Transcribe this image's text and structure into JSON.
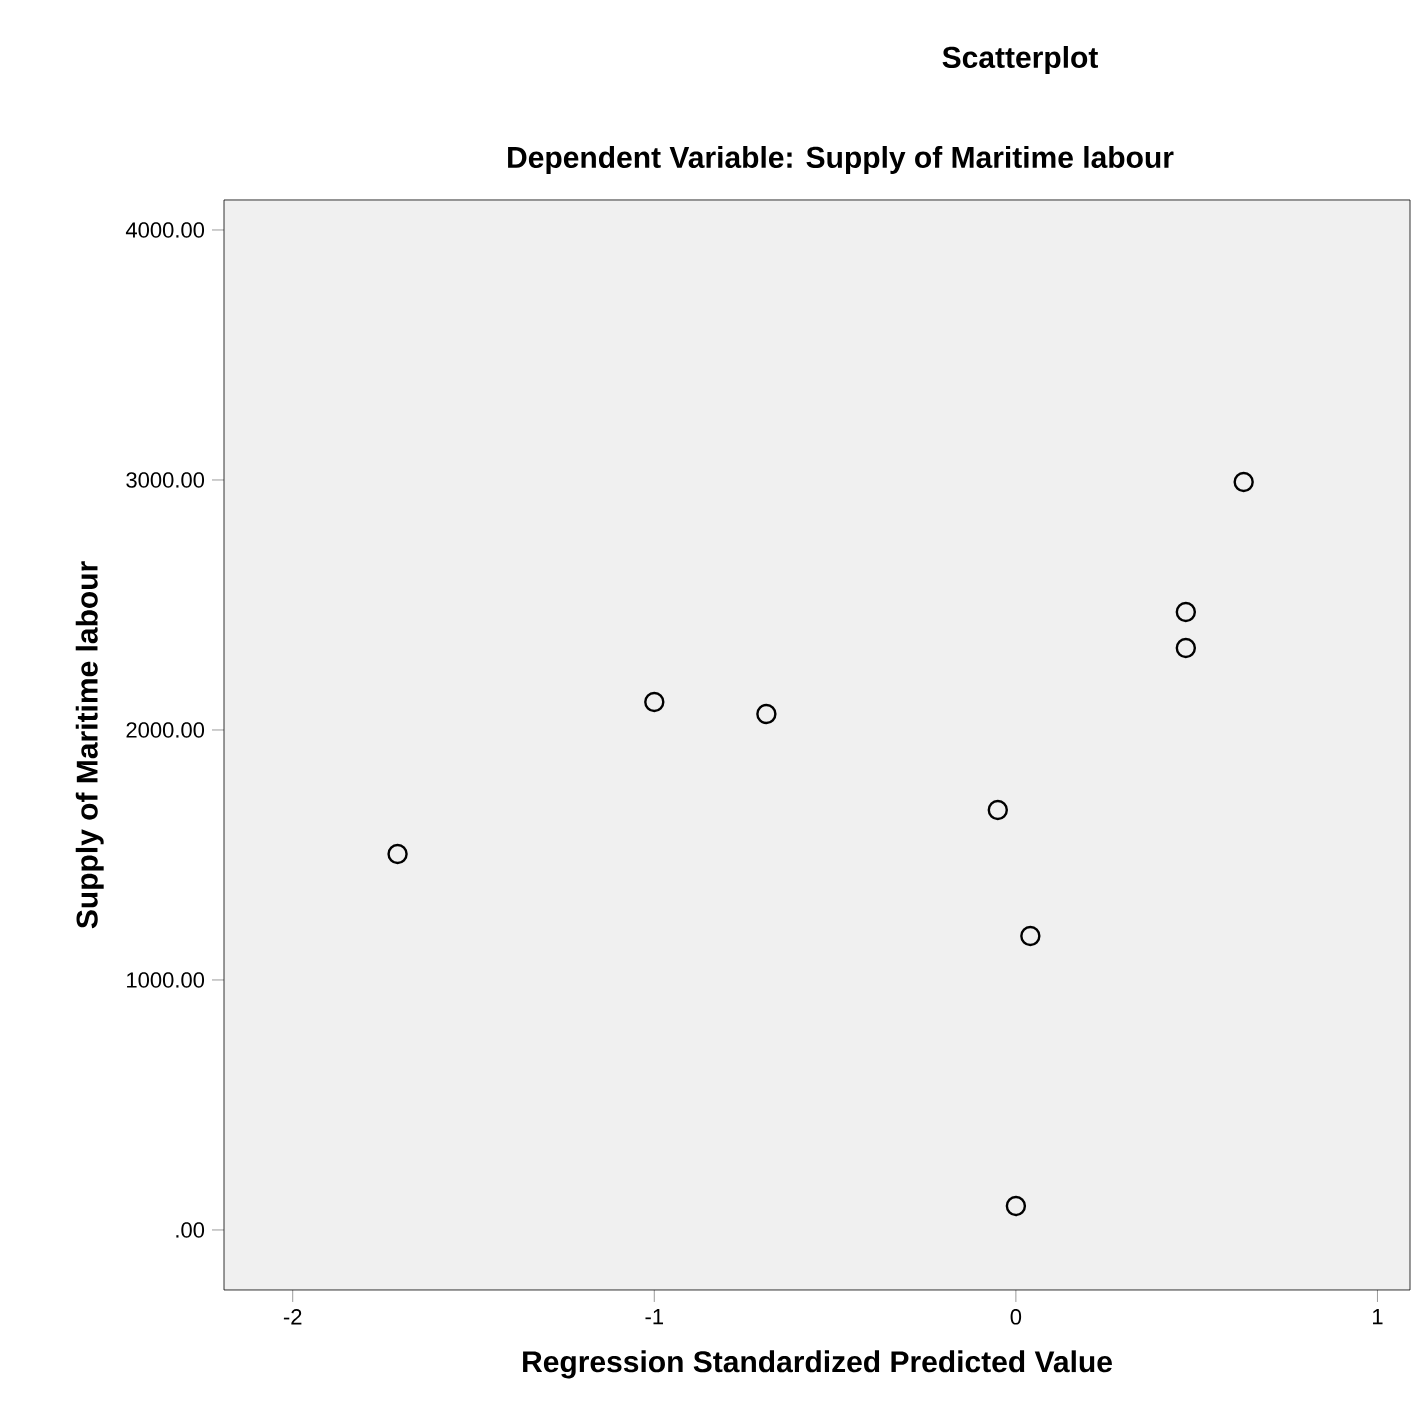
{
  "chart_data": {
    "type": "scatter",
    "title": "Scatterplot",
    "subtitle": "Dependent Variable: Supply of Maritime labour",
    "xlabel": "Regression Standardized Predicted Value",
    "ylabel": "Supply of Maritime labour",
    "x": [
      -1.71,
      -1.0,
      -0.69,
      -0.05,
      0.04,
      0.0,
      0.47,
      0.47,
      0.63
    ],
    "values": [
      1504,
      2112,
      2064,
      1680,
      1176,
      96,
      2472,
      2328,
      2992
    ],
    "color": "#000000",
    "marker": "circle",
    "grid": false,
    "xlim": [
      -2.19,
      1.09
    ],
    "ylim": [
      -240,
      4120
    ],
    "xticks": [
      -2,
      -1,
      0,
      1
    ],
    "yticks": [
      {
        "value": 0,
        "label": ".00"
      },
      {
        "value": 1000,
        "label": "1000.00"
      },
      {
        "value": 2000,
        "label": "2000.00"
      },
      {
        "value": 3000,
        "label": "3000.00"
      },
      {
        "value": 4000,
        "label": "4000.00"
      }
    ]
  }
}
